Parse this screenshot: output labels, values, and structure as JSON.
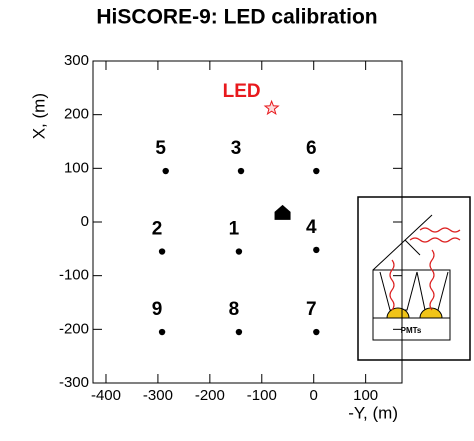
{
  "chart_data": {
    "type": "scatter",
    "title": "HiSCORE-9: LED calibration",
    "x_label": "-Y, (m)",
    "y_label": "X, (m)",
    "xlim": [
      -425,
      170
    ],
    "ylim": [
      -300,
      300
    ],
    "xticks": [
      -400,
      -300,
      -200,
      -100,
      0,
      100
    ],
    "yticks": [
      -300,
      -200,
      -100,
      0,
      100,
      200,
      300
    ],
    "series": [
      {
        "marker": "dot",
        "color": "#000000",
        "x": [
          -285,
          -140,
          5,
          -292,
          -144,
          5,
          -292,
          -144,
          5
        ],
        "y": [
          95,
          95,
          95,
          -55,
          -55,
          -52,
          -205,
          -205,
          -205
        ],
        "labels": [
          "5",
          "3",
          "6",
          "2",
          "1",
          "4",
          "9",
          "8",
          "7"
        ]
      },
      {
        "name": "LED",
        "marker": "star",
        "color": "#e8191d",
        "x": [
          -81
        ],
        "y": [
          212
        ]
      },
      {
        "marker": "house",
        "color": "#000000",
        "x": [
          -60
        ],
        "y": [
          17
        ]
      }
    ],
    "inset_label": "PMTs"
  }
}
